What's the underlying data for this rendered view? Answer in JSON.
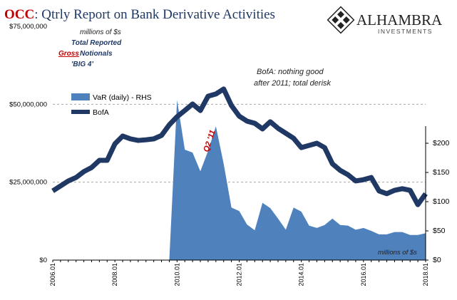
{
  "chart_data": {
    "type": "line",
    "title": {
      "highlight": "OCC",
      "rest": ": Qtrly Report on Bank Derivative Activities"
    },
    "logo": {
      "name": "ALHAMBRA",
      "sub": "INVESTMENTS"
    },
    "annotations": [
      "millions of $s",
      "Total Reported",
      "Gross",
      "Notionals",
      "'BIG 4'",
      "BofA: nothing good",
      "after 2011; total derisk",
      "Q2 '11",
      "millions of $s"
    ],
    "categories": [
      "2006.01",
      null,
      null,
      null,
      null,
      null,
      null,
      null,
      "2008.01",
      null,
      null,
      null,
      null,
      null,
      null,
      null,
      "2010.01",
      null,
      null,
      null,
      null,
      null,
      null,
      null,
      "2012.01",
      null,
      null,
      null,
      null,
      null,
      null,
      null,
      "2014.01",
      null,
      null,
      null,
      null,
      null,
      null,
      null,
      "2016.01",
      null,
      null,
      null,
      null,
      null,
      null,
      null,
      "2018.01"
    ],
    "series": [
      {
        "name": "VaR (daily) - RHS",
        "color": "#4f81bd",
        "axis": "y2",
        "style": "area",
        "values": [
          null,
          null,
          null,
          null,
          null,
          null,
          null,
          null,
          null,
          null,
          null,
          null,
          null,
          null,
          null,
          0,
          274,
          189,
          184,
          152,
          187,
          229,
          165,
          90,
          84,
          61,
          51,
          98,
          89,
          71,
          52,
          90,
          83,
          59,
          55,
          60,
          71,
          60,
          59,
          52,
          55,
          50,
          44,
          44,
          48,
          48,
          43,
          43,
          46
        ]
      },
      {
        "name": "BofA",
        "color": "#1f3864",
        "style": "line",
        "values": [
          22200000,
          23800000,
          25400000,
          26500000,
          28400000,
          29700000,
          32000000,
          32000000,
          37300000,
          39800000,
          38900000,
          38400000,
          38600000,
          38900000,
          40000000,
          43400000,
          46000000,
          48000000,
          50100000,
          48000000,
          52600000,
          53300000,
          54900000,
          49600000,
          46200000,
          44600000,
          43900000,
          42100000,
          44400000,
          42300000,
          40700000,
          39100000,
          36100000,
          36800000,
          37500000,
          36100000,
          30900000,
          28800000,
          27400000,
          25400000,
          25800000,
          26500000,
          22200000,
          21300000,
          22400000,
          22900000,
          22400000,
          17800000,
          21300000
        ]
      }
    ],
    "ylim": [
      0,
      75000000
    ],
    "yticks": [
      {
        "value": 0,
        "label": "$0"
      },
      {
        "value": 25000000,
        "label": "$25,000,000"
      },
      {
        "value": 50000000,
        "label": "$50,000,000"
      },
      {
        "value": 75000000,
        "label": "$75,000,000"
      }
    ],
    "y2lim": [
      0,
      400
    ],
    "y2ticks": [
      {
        "value": 0,
        "label": "$0"
      },
      {
        "value": 50,
        "label": "$50"
      },
      {
        "value": 100,
        "label": "$100"
      },
      {
        "value": 150,
        "label": "$150"
      },
      {
        "value": 200,
        "label": "$200"
      }
    ],
    "grid": true
  }
}
